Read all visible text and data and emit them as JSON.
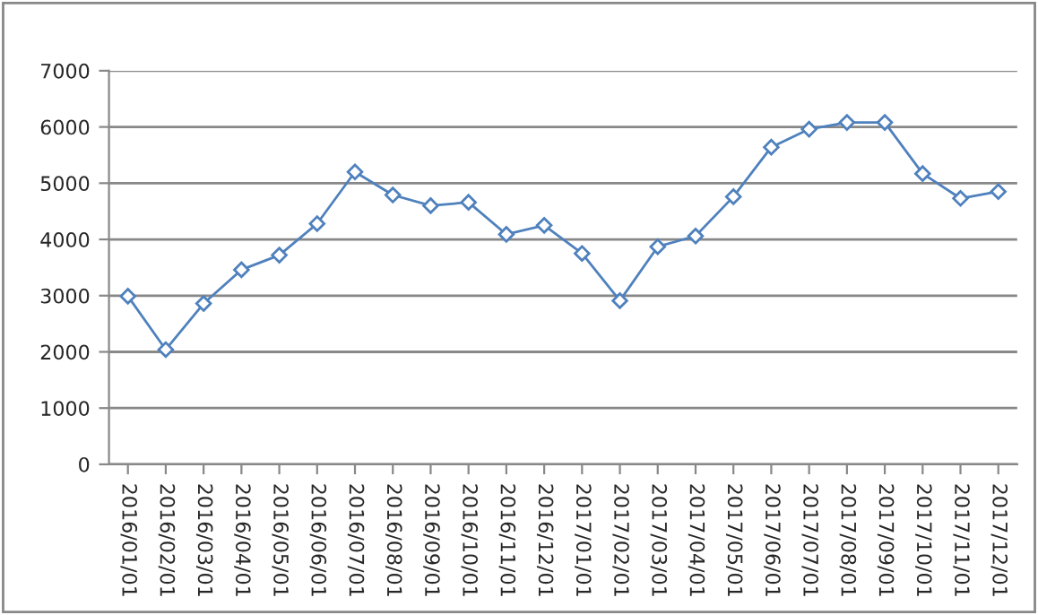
{
  "chart_data": {
    "type": "line",
    "categories": [
      "2016/01/01",
      "2016/02/01",
      "2016/03/01",
      "2016/04/01",
      "2016/05/01",
      "2016/06/01",
      "2016/07/01",
      "2016/08/01",
      "2016/09/01",
      "2016/10/01",
      "2016/11/01",
      "2016/12/01",
      "2017/01/01",
      "2017/02/01",
      "2017/03/01",
      "2017/04/01",
      "2017/05/01",
      "2017/06/01",
      "2017/07/01",
      "2017/08/01",
      "2017/09/01",
      "2017/10/01",
      "2017/11/01",
      "2017/12/01"
    ],
    "series": [
      {
        "color": "#4f81bd",
        "values": [
          2990,
          2040,
          2860,
          3460,
          3720,
          4280,
          5200,
          4790,
          4600,
          4660,
          4090,
          4250,
          3750,
          2910,
          3870,
          4060,
          4760,
          5640,
          5960,
          6080,
          6080,
          5170,
          4730,
          4850
        ]
      }
    ],
    "ylim": [
      0,
      7000
    ],
    "yticks": [
      0,
      1000,
      2000,
      3000,
      4000,
      5000,
      6000,
      7000
    ],
    "grid": "y",
    "marker": "diamond",
    "line_style": "solid"
  }
}
